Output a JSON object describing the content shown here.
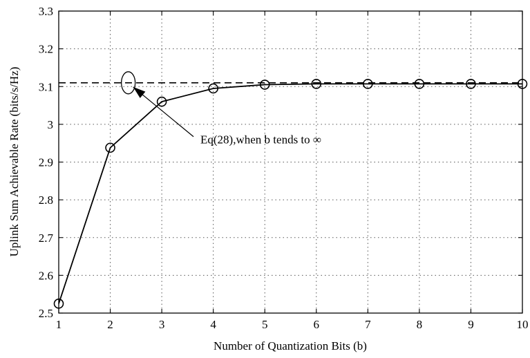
{
  "chart_data": {
    "type": "line",
    "title": "",
    "xlabel": "Number of Quantization Bits (b)",
    "ylabel": "Uplink Sum Achievable Rate (bits/s/Hz)",
    "xlim": [
      1,
      10
    ],
    "ylim": [
      2.5,
      3.3
    ],
    "xticks": [
      "1",
      "2",
      "3",
      "4",
      "5",
      "6",
      "7",
      "8",
      "9",
      "10"
    ],
    "yticks": [
      "2.5",
      "2.6",
      "2.7",
      "2.8",
      "2.9",
      "3",
      "3.1",
      "3.2",
      "3.3"
    ],
    "grid": true,
    "series": [
      {
        "x": [
          1,
          2,
          3,
          4,
          5,
          6,
          7,
          8,
          9,
          10
        ],
        "values": [
          2.525,
          2.938,
          3.06,
          3.095,
          3.105,
          3.107,
          3.107,
          3.107,
          3.107,
          3.107
        ],
        "marker": "circle",
        "line": "solid",
        "color": "#000000"
      },
      {
        "y_const": 3.11,
        "line": "dashed",
        "color": "#000000"
      }
    ],
    "annotation": {
      "text": "Eq(28),when b tends to ∞",
      "point_x": 2.35,
      "point_y": 3.11,
      "text_x": 3.75,
      "text_y": 2.96
    }
  }
}
